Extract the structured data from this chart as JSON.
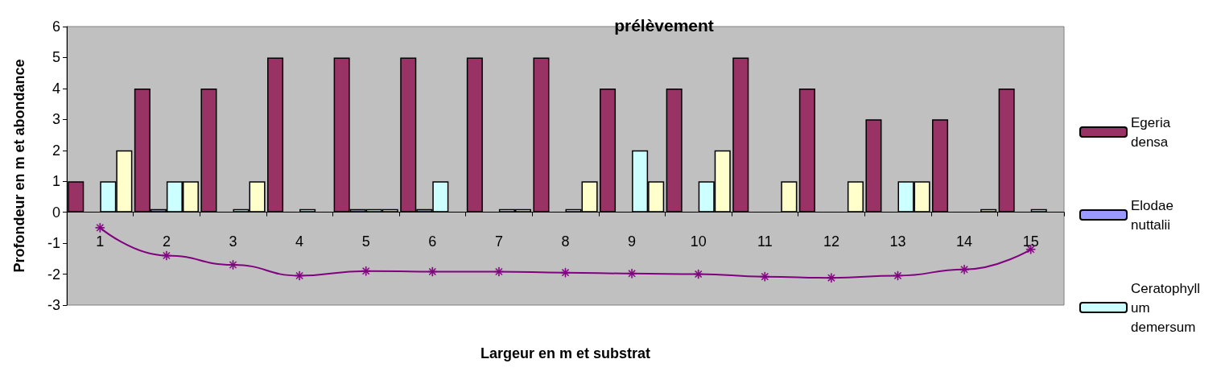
{
  "chart_data": {
    "type": "bar",
    "title": "prélèvement",
    "xlabel": "Largeur en m et substrat",
    "ylabel": "Profondeur en m et abondance",
    "categories": [
      "1",
      "2",
      "3",
      "4",
      "5",
      "6",
      "7",
      "8",
      "9",
      "10",
      "11",
      "12",
      "13",
      "14",
      "15"
    ],
    "series": [
      {
        "name": "Egeria densa",
        "color": "#993366",
        "values": [
          1,
          4,
          4,
          5,
          5,
          5,
          5,
          5,
          4,
          4,
          5,
          4,
          3,
          3,
          4
        ]
      },
      {
        "name": "Elodae nuttalii",
        "color": "#9999ff",
        "values": [
          null,
          0.1,
          null,
          null,
          0.1,
          0.1,
          null,
          null,
          null,
          null,
          null,
          null,
          null,
          null,
          null
        ]
      },
      {
        "name": "Ceratophyllum demersum",
        "color": "#ccffff",
        "values": [
          1,
          1,
          0.1,
          0.1,
          0.1,
          1,
          0.1,
          0.1,
          2,
          1,
          null,
          null,
          1,
          null,
          0.1
        ]
      },
      {
        "color": "#ffffcc",
        "values": [
          2,
          1,
          1,
          null,
          0.1,
          null,
          0.1,
          1,
          1,
          2,
          1,
          1,
          1,
          0.1,
          null
        ]
      },
      {
        "type": "line",
        "color": "#800080",
        "marker": "star",
        "line_style": "solid",
        "values": [
          -0.5,
          -1.4,
          -1.7,
          -2.05,
          -1.9,
          -1.92,
          -1.92,
          -1.95,
          -1.98,
          -2.0,
          -2.08,
          -2.12,
          -2.05,
          -1.85,
          -1.2
        ]
      }
    ],
    "ylim": [
      -3,
      6
    ],
    "yticks": [
      -3,
      -2,
      -1,
      0,
      1,
      2,
      3,
      4,
      5,
      6
    ],
    "grid": false,
    "legend": "right"
  }
}
